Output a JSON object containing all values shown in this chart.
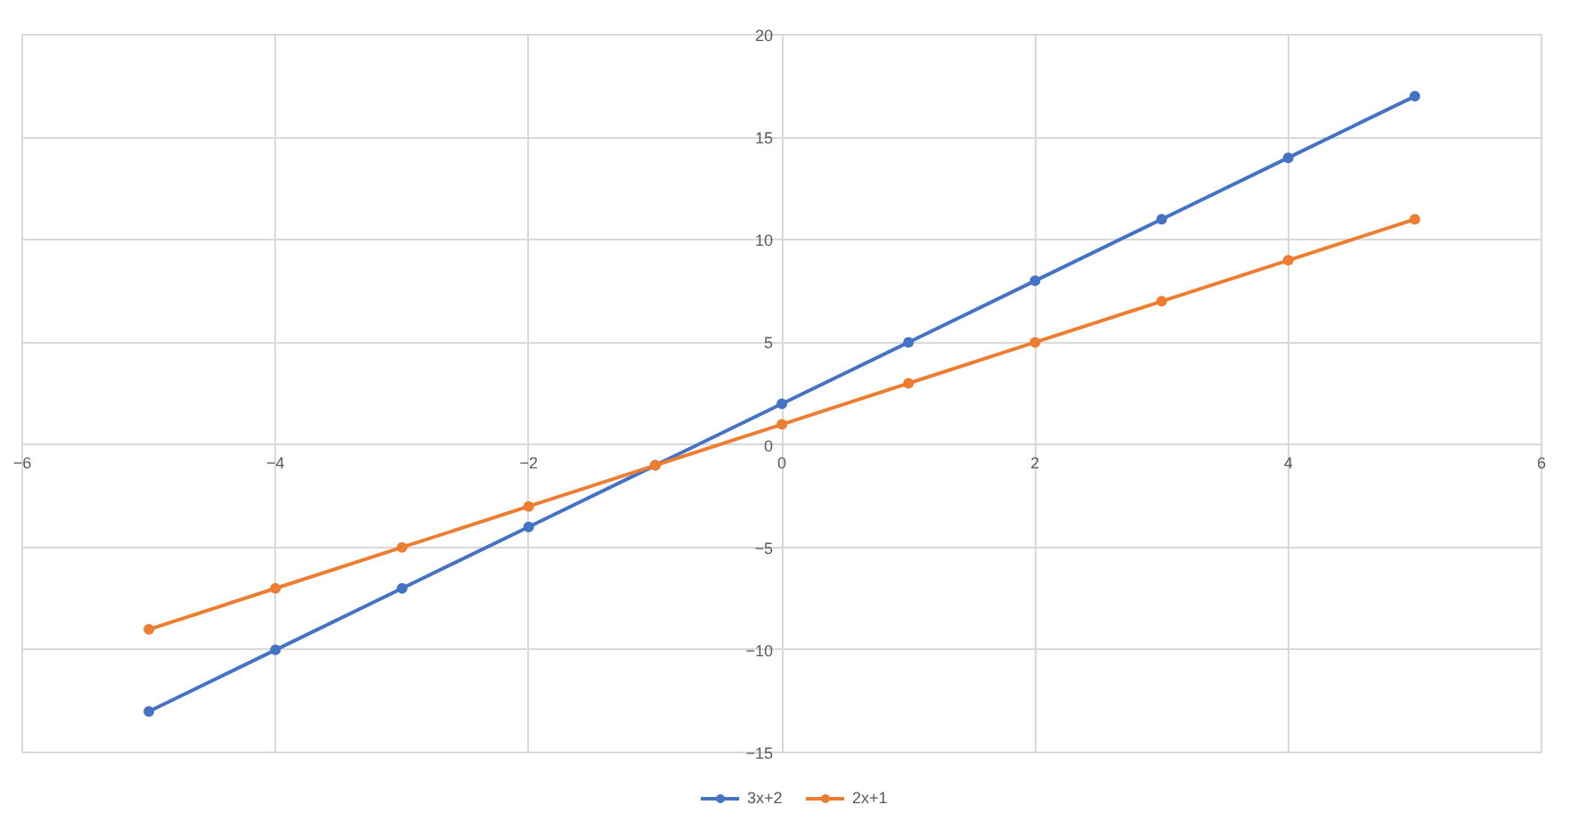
{
  "chart_data": {
    "type": "line",
    "x": [
      -5,
      -4,
      -3,
      -2,
      -1,
      0,
      1,
      2,
      3,
      4,
      5
    ],
    "series": [
      {
        "name": "3x+2",
        "color": "#4472c4",
        "values": [
          -13,
          -10,
          -7,
          -4,
          -1,
          2,
          5,
          8,
          11,
          14,
          17
        ]
      },
      {
        "name": "2x+1",
        "color": "#ed7d31",
        "values": [
          -9,
          -7,
          -5,
          -3,
          -1,
          1,
          3,
          5,
          7,
          9,
          11
        ]
      }
    ],
    "xlim": [
      -6,
      6
    ],
    "ylim": [
      -15,
      20
    ],
    "xticks": [
      -6,
      -4,
      -2,
      0,
      2,
      4,
      6
    ],
    "yticks": [
      -15,
      -10,
      -5,
      0,
      5,
      10,
      15,
      20
    ],
    "grid": true,
    "legend": "bottom",
    "marker": "circle",
    "line_style": "solid"
  }
}
